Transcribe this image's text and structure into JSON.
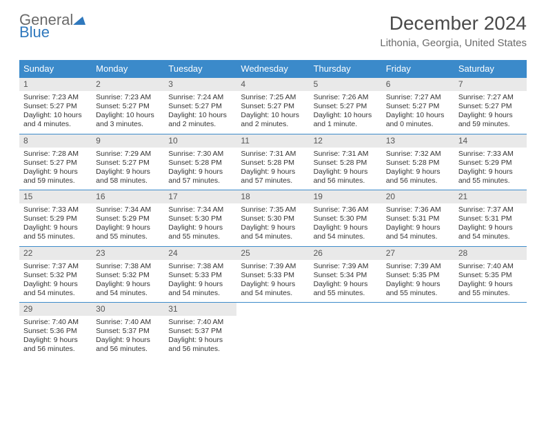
{
  "brand": {
    "general": "General",
    "blue": "Blue"
  },
  "title": "December 2024",
  "location": "Lithonia, Georgia, United States",
  "colors": {
    "header_bg": "#3b8aca",
    "header_text": "#ffffff",
    "daynum_bg": "#e9e9e9",
    "border": "#3b8aca",
    "title_color": "#4a4a4a",
    "subtitle_color": "#6a6a6a"
  },
  "weekdays": [
    "Sunday",
    "Monday",
    "Tuesday",
    "Wednesday",
    "Thursday",
    "Friday",
    "Saturday"
  ],
  "weeks": [
    [
      {
        "n": "1",
        "sr": "Sunrise: 7:23 AM",
        "ss": "Sunset: 5:27 PM",
        "d1": "Daylight: 10 hours",
        "d2": "and 4 minutes."
      },
      {
        "n": "2",
        "sr": "Sunrise: 7:23 AM",
        "ss": "Sunset: 5:27 PM",
        "d1": "Daylight: 10 hours",
        "d2": "and 3 minutes."
      },
      {
        "n": "3",
        "sr": "Sunrise: 7:24 AM",
        "ss": "Sunset: 5:27 PM",
        "d1": "Daylight: 10 hours",
        "d2": "and 2 minutes."
      },
      {
        "n": "4",
        "sr": "Sunrise: 7:25 AM",
        "ss": "Sunset: 5:27 PM",
        "d1": "Daylight: 10 hours",
        "d2": "and 2 minutes."
      },
      {
        "n": "5",
        "sr": "Sunrise: 7:26 AM",
        "ss": "Sunset: 5:27 PM",
        "d1": "Daylight: 10 hours",
        "d2": "and 1 minute."
      },
      {
        "n": "6",
        "sr": "Sunrise: 7:27 AM",
        "ss": "Sunset: 5:27 PM",
        "d1": "Daylight: 10 hours",
        "d2": "and 0 minutes."
      },
      {
        "n": "7",
        "sr": "Sunrise: 7:27 AM",
        "ss": "Sunset: 5:27 PM",
        "d1": "Daylight: 9 hours",
        "d2": "and 59 minutes."
      }
    ],
    [
      {
        "n": "8",
        "sr": "Sunrise: 7:28 AM",
        "ss": "Sunset: 5:27 PM",
        "d1": "Daylight: 9 hours",
        "d2": "and 59 minutes."
      },
      {
        "n": "9",
        "sr": "Sunrise: 7:29 AM",
        "ss": "Sunset: 5:27 PM",
        "d1": "Daylight: 9 hours",
        "d2": "and 58 minutes."
      },
      {
        "n": "10",
        "sr": "Sunrise: 7:30 AM",
        "ss": "Sunset: 5:28 PM",
        "d1": "Daylight: 9 hours",
        "d2": "and 57 minutes."
      },
      {
        "n": "11",
        "sr": "Sunrise: 7:31 AM",
        "ss": "Sunset: 5:28 PM",
        "d1": "Daylight: 9 hours",
        "d2": "and 57 minutes."
      },
      {
        "n": "12",
        "sr": "Sunrise: 7:31 AM",
        "ss": "Sunset: 5:28 PM",
        "d1": "Daylight: 9 hours",
        "d2": "and 56 minutes."
      },
      {
        "n": "13",
        "sr": "Sunrise: 7:32 AM",
        "ss": "Sunset: 5:28 PM",
        "d1": "Daylight: 9 hours",
        "d2": "and 56 minutes."
      },
      {
        "n": "14",
        "sr": "Sunrise: 7:33 AM",
        "ss": "Sunset: 5:29 PM",
        "d1": "Daylight: 9 hours",
        "d2": "and 55 minutes."
      }
    ],
    [
      {
        "n": "15",
        "sr": "Sunrise: 7:33 AM",
        "ss": "Sunset: 5:29 PM",
        "d1": "Daylight: 9 hours",
        "d2": "and 55 minutes."
      },
      {
        "n": "16",
        "sr": "Sunrise: 7:34 AM",
        "ss": "Sunset: 5:29 PM",
        "d1": "Daylight: 9 hours",
        "d2": "and 55 minutes."
      },
      {
        "n": "17",
        "sr": "Sunrise: 7:34 AM",
        "ss": "Sunset: 5:30 PM",
        "d1": "Daylight: 9 hours",
        "d2": "and 55 minutes."
      },
      {
        "n": "18",
        "sr": "Sunrise: 7:35 AM",
        "ss": "Sunset: 5:30 PM",
        "d1": "Daylight: 9 hours",
        "d2": "and 54 minutes."
      },
      {
        "n": "19",
        "sr": "Sunrise: 7:36 AM",
        "ss": "Sunset: 5:30 PM",
        "d1": "Daylight: 9 hours",
        "d2": "and 54 minutes."
      },
      {
        "n": "20",
        "sr": "Sunrise: 7:36 AM",
        "ss": "Sunset: 5:31 PM",
        "d1": "Daylight: 9 hours",
        "d2": "and 54 minutes."
      },
      {
        "n": "21",
        "sr": "Sunrise: 7:37 AM",
        "ss": "Sunset: 5:31 PM",
        "d1": "Daylight: 9 hours",
        "d2": "and 54 minutes."
      }
    ],
    [
      {
        "n": "22",
        "sr": "Sunrise: 7:37 AM",
        "ss": "Sunset: 5:32 PM",
        "d1": "Daylight: 9 hours",
        "d2": "and 54 minutes."
      },
      {
        "n": "23",
        "sr": "Sunrise: 7:38 AM",
        "ss": "Sunset: 5:32 PM",
        "d1": "Daylight: 9 hours",
        "d2": "and 54 minutes."
      },
      {
        "n": "24",
        "sr": "Sunrise: 7:38 AM",
        "ss": "Sunset: 5:33 PM",
        "d1": "Daylight: 9 hours",
        "d2": "and 54 minutes."
      },
      {
        "n": "25",
        "sr": "Sunrise: 7:39 AM",
        "ss": "Sunset: 5:33 PM",
        "d1": "Daylight: 9 hours",
        "d2": "and 54 minutes."
      },
      {
        "n": "26",
        "sr": "Sunrise: 7:39 AM",
        "ss": "Sunset: 5:34 PM",
        "d1": "Daylight: 9 hours",
        "d2": "and 55 minutes."
      },
      {
        "n": "27",
        "sr": "Sunrise: 7:39 AM",
        "ss": "Sunset: 5:35 PM",
        "d1": "Daylight: 9 hours",
        "d2": "and 55 minutes."
      },
      {
        "n": "28",
        "sr": "Sunrise: 7:40 AM",
        "ss": "Sunset: 5:35 PM",
        "d1": "Daylight: 9 hours",
        "d2": "and 55 minutes."
      }
    ],
    [
      {
        "n": "29",
        "sr": "Sunrise: 7:40 AM",
        "ss": "Sunset: 5:36 PM",
        "d1": "Daylight: 9 hours",
        "d2": "and 56 minutes."
      },
      {
        "n": "30",
        "sr": "Sunrise: 7:40 AM",
        "ss": "Sunset: 5:37 PM",
        "d1": "Daylight: 9 hours",
        "d2": "and 56 minutes."
      },
      {
        "n": "31",
        "sr": "Sunrise: 7:40 AM",
        "ss": "Sunset: 5:37 PM",
        "d1": "Daylight: 9 hours",
        "d2": "and 56 minutes."
      },
      {
        "empty": true
      },
      {
        "empty": true
      },
      {
        "empty": true
      },
      {
        "empty": true
      }
    ]
  ]
}
